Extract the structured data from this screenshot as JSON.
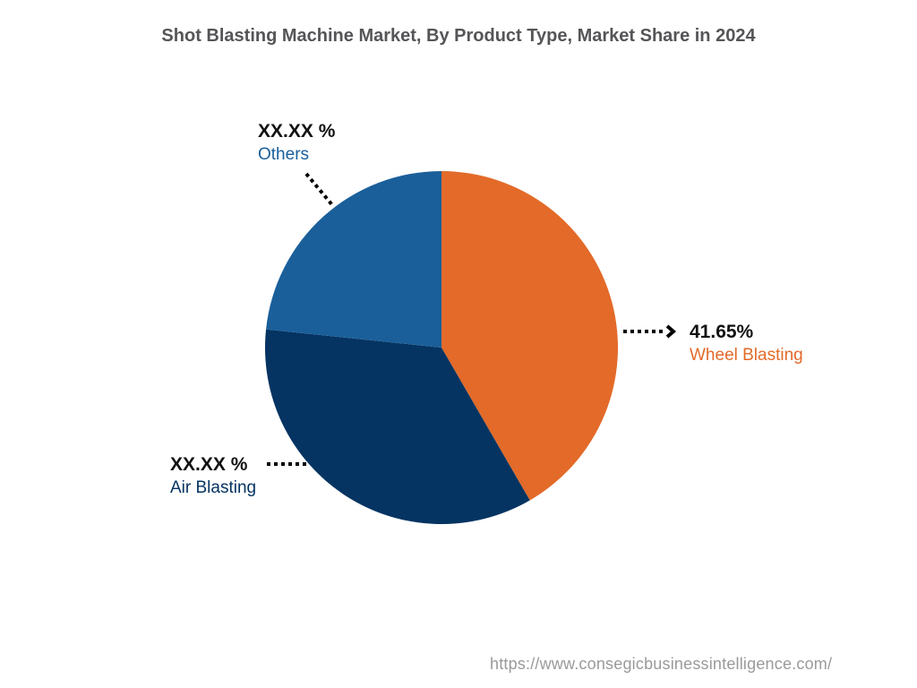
{
  "title": "Shot Blasting Machine Market, By Product Type, Market Share in 2024",
  "footer": "https://www.consegicbusinessintelligence.com/",
  "labels": {
    "wheel": {
      "value": "41.65%",
      "name": "Wheel Blasting",
      "color": "#E36A29"
    },
    "air": {
      "value": "XX.XX %",
      "name": "Air Blasting",
      "color": "#053462"
    },
    "others": {
      "value": "XX.XX %",
      "name": "Others",
      "color": "#1A5F9A"
    }
  },
  "chart_data": {
    "type": "pie",
    "title": "Shot Blasting Machine Market, By Product Type, Market Share in 2024",
    "categories": [
      "Wheel Blasting",
      "Air Blasting",
      "Others"
    ],
    "values": [
      41.65,
      35.0,
      23.35
    ],
    "displayed_labels": [
      "41.65%",
      "XX.XX %",
      "XX.XX %"
    ],
    "colors": [
      "#E36A29",
      "#053462",
      "#1A5F9A"
    ],
    "start_angle_deg": 0,
    "direction": "clockwise",
    "legend": "none (callout labels)"
  }
}
